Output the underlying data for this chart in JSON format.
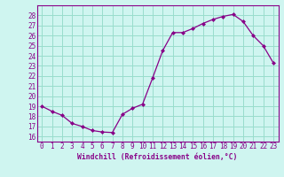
{
  "x": [
    0,
    1,
    2,
    3,
    4,
    5,
    6,
    7,
    8,
    9,
    10,
    11,
    12,
    13,
    14,
    15,
    16,
    17,
    18,
    19,
    20,
    21,
    22,
    23
  ],
  "y": [
    19.0,
    18.5,
    18.1,
    17.3,
    17.0,
    16.6,
    16.45,
    16.4,
    18.2,
    18.8,
    19.2,
    21.8,
    24.5,
    26.3,
    26.3,
    26.7,
    27.2,
    27.6,
    27.9,
    28.1,
    27.4,
    26.0,
    25.0,
    23.3
  ],
  "line_color": "#880088",
  "marker_color": "#880088",
  "bg_color": "#cff5f0",
  "grid_color": "#99ddcc",
  "xlabel": "Windchill (Refroidissement éolien,°C)",
  "ylim": [
    15.5,
    29.0
  ],
  "xlim": [
    -0.5,
    23.5
  ],
  "yticks": [
    16,
    17,
    18,
    19,
    20,
    21,
    22,
    23,
    24,
    25,
    26,
    27,
    28
  ],
  "xticks": [
    0,
    1,
    2,
    3,
    4,
    5,
    6,
    7,
    8,
    9,
    10,
    11,
    12,
    13,
    14,
    15,
    16,
    17,
    18,
    19,
    20,
    21,
    22,
    23
  ],
  "tick_fontsize": 5.5,
  "xlabel_fontsize": 5.8,
  "spine_color": "#880088"
}
